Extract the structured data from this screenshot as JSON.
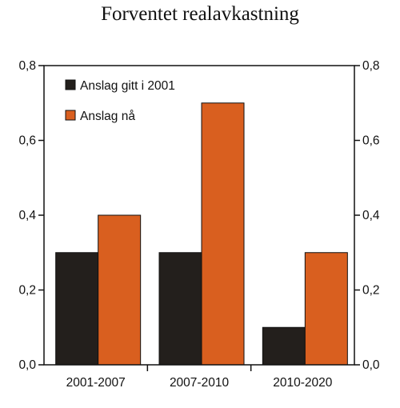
{
  "chart_data": {
    "type": "bar",
    "title": "Forventet realavkastning",
    "categories": [
      "2001-2007",
      "2007-2010",
      "2010-2020"
    ],
    "series": [
      {
        "name": "Anslag gitt i 2001",
        "values": [
          0.3,
          0.3,
          0.1
        ],
        "color": "#231f1c"
      },
      {
        "name": "Anslag nå",
        "values": [
          0.4,
          0.7,
          0.3
        ],
        "color": "#d95f1f"
      }
    ],
    "ylim": [
      0,
      0.8
    ],
    "yticks": [
      "0,0",
      "0,2",
      "0,4",
      "0,6",
      "0,8"
    ],
    "right_axis": true,
    "grid": false,
    "legend_position": "top-left"
  }
}
